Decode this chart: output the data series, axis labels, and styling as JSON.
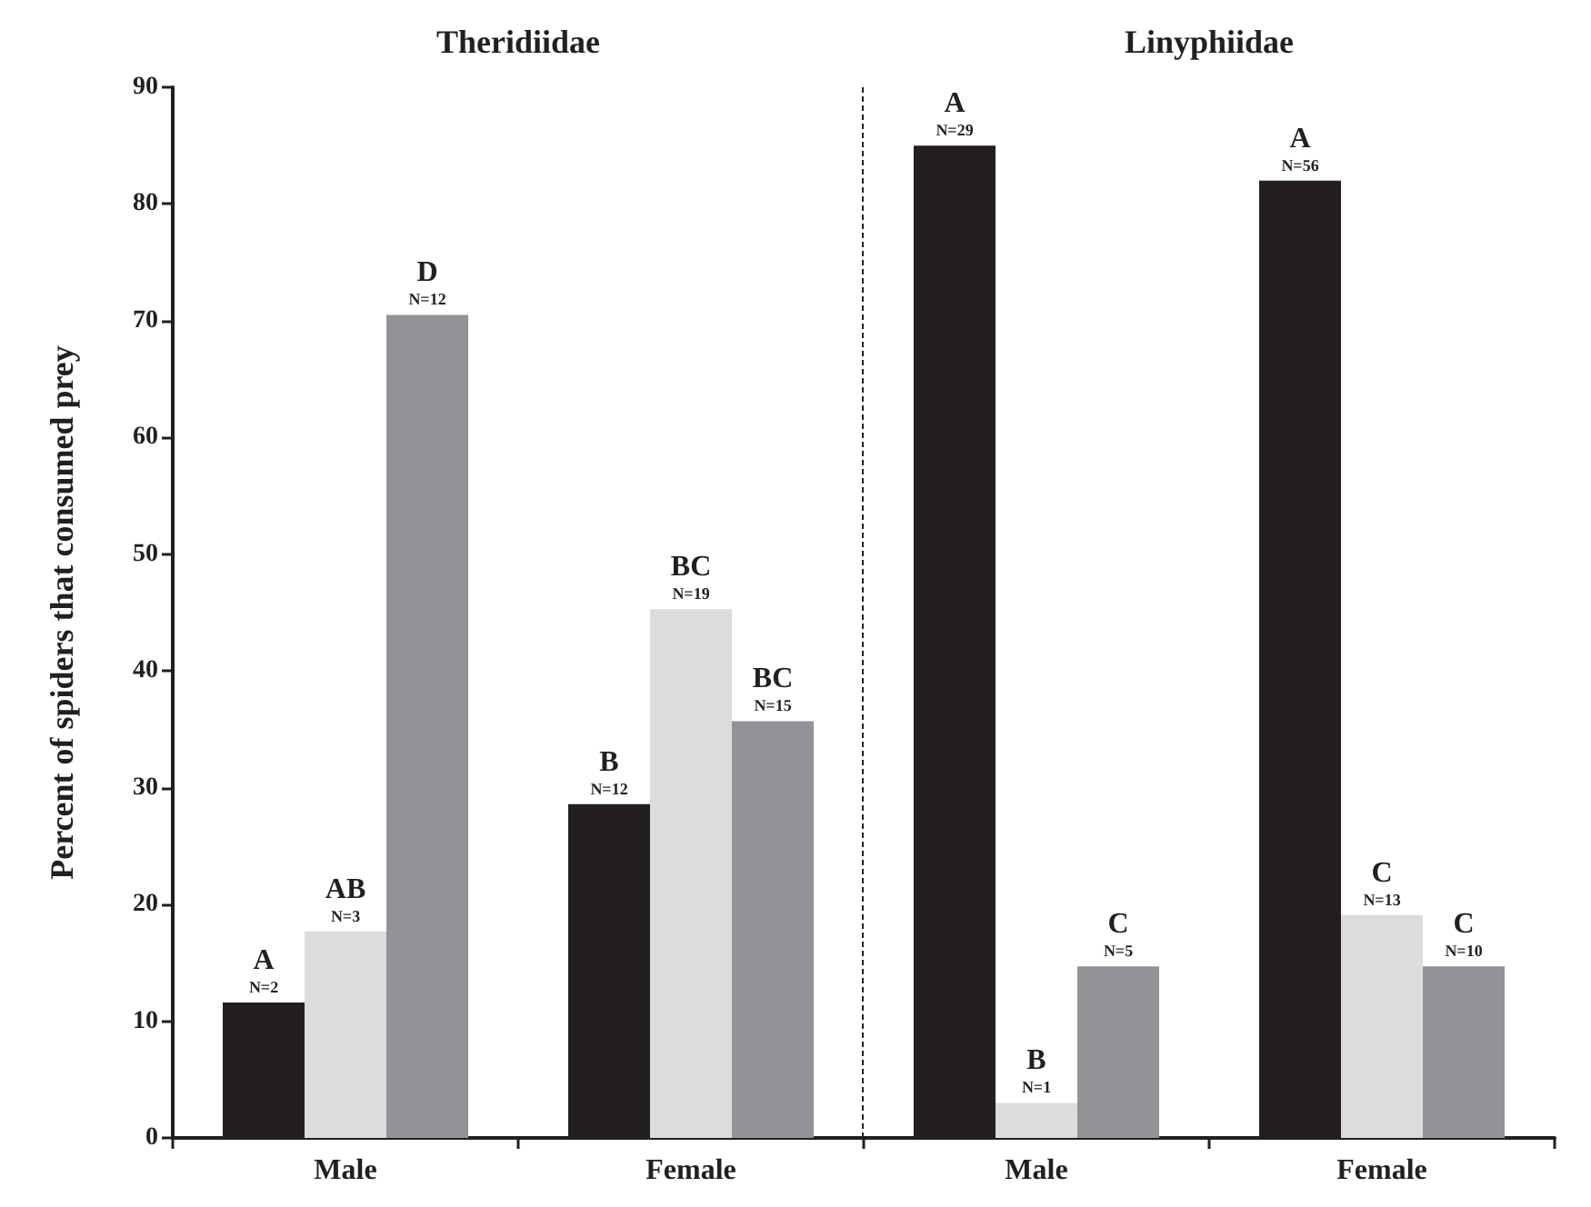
{
  "chart_data": {
    "type": "bar",
    "ylabel": "Percent of spiders that consumed prey",
    "categories": [
      "Male",
      "Female",
      "Male",
      "Female"
    ],
    "series": [
      {
        "color": "#231f20",
        "values": [
          11.6,
          28.6,
          85,
          82
        ]
      },
      {
        "color": "#dcdcdd",
        "values": [
          17.7,
          45.3,
          3,
          19.1
        ]
      },
      {
        "color": "#929396",
        "values": [
          70.5,
          35.7,
          14.7,
          14.7
        ]
      }
    ],
    "ylim": [
      0,
      90
    ],
    "yticks": [
      0,
      10,
      20,
      30,
      40,
      50,
      60,
      70,
      80,
      90
    ],
    "annotations": [
      "Theridiidae",
      "Linyphiidae",
      "A\nN=2",
      "AB\nN=3",
      "D\nN=12",
      "B\nN=12",
      "BC\nN=19",
      "BC\nN=15",
      "A\nN=29",
      "B\nN=1",
      "C\nN=5",
      "A\nN=56",
      "C\nN=13",
      "C\nN=10"
    ],
    "grid": false
  }
}
